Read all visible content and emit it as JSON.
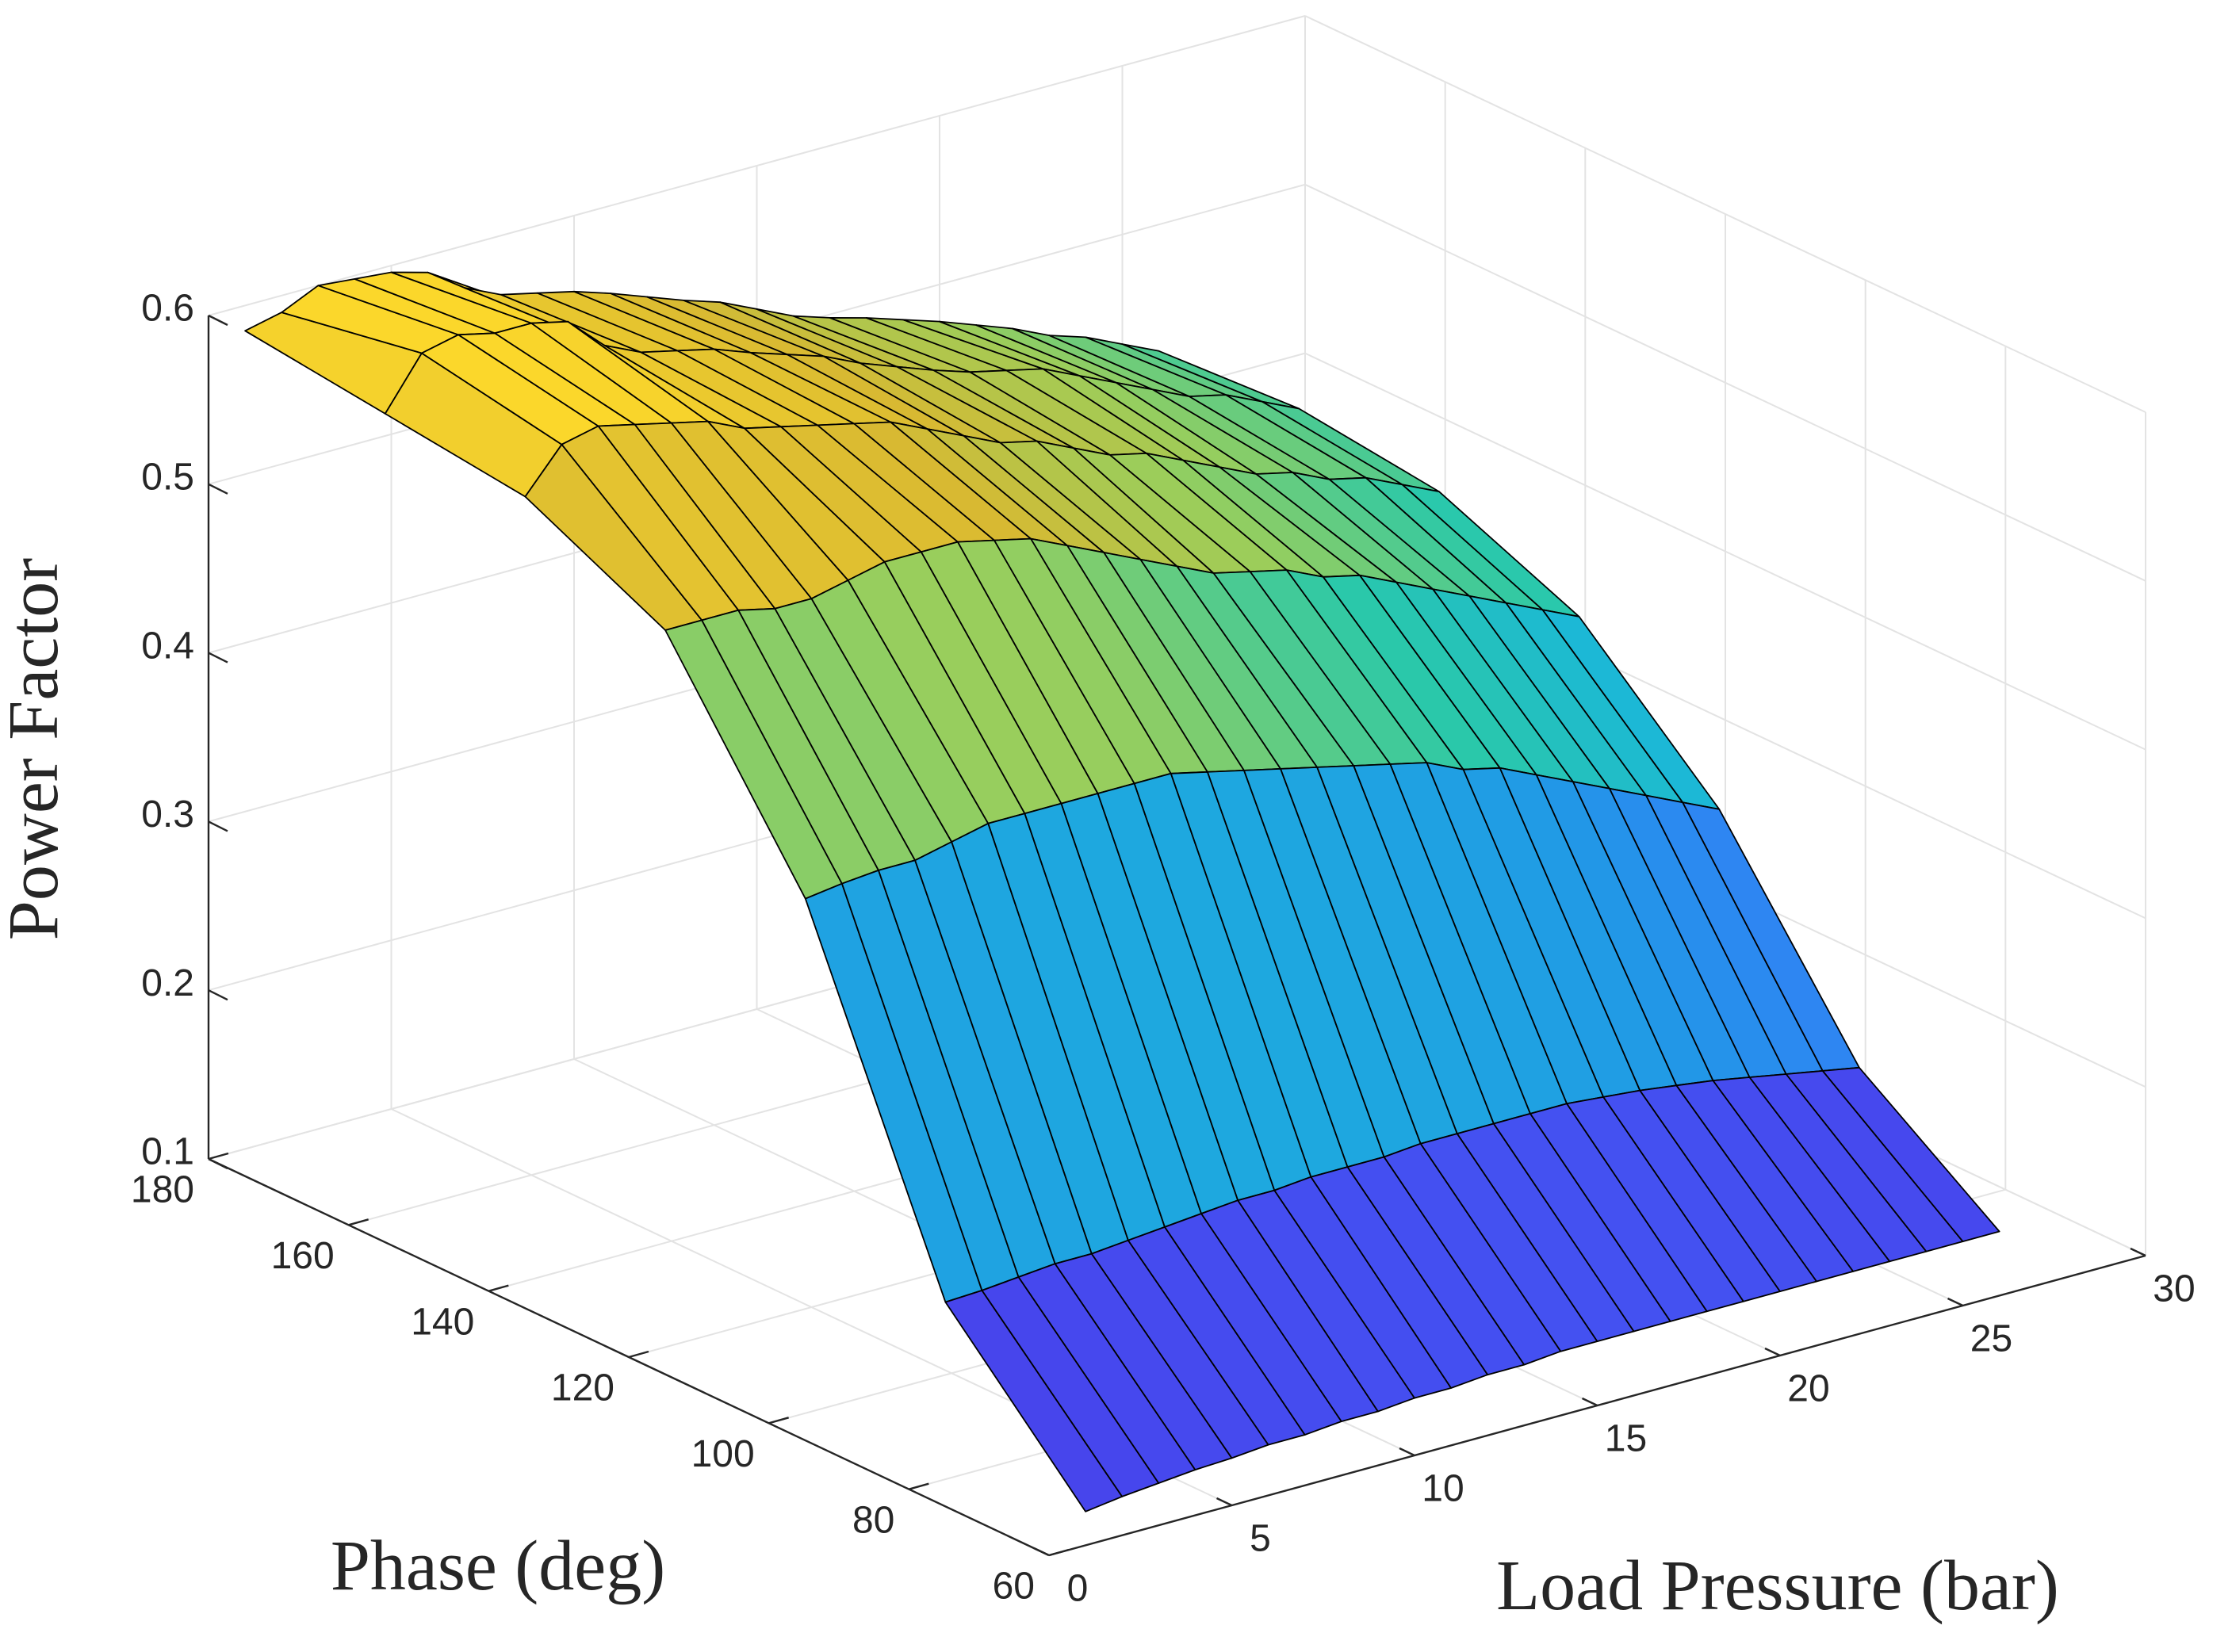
{
  "chart_data": {
    "type": "surface",
    "title": "",
    "xlabel": "Load Pressure (bar)",
    "ylabel": "Phase (deg)",
    "zlabel": "Power Factor",
    "xlim": [
      0,
      30
    ],
    "ylim": [
      60,
      180
    ],
    "zlim": [
      0.1,
      0.6
    ],
    "xticks": [
      0,
      5,
      10,
      15,
      20,
      25,
      30
    ],
    "yticks": [
      60,
      80,
      100,
      120,
      140,
      160,
      180
    ],
    "zticks": [
      0.1,
      0.2,
      0.3,
      0.4,
      0.5,
      0.6
    ],
    "xtick_labels": [
      "0",
      "5",
      "10",
      "15",
      "20",
      "25",
      "30"
    ],
    "ytick_labels": [
      "60",
      "80",
      "100",
      "120",
      "140",
      "160",
      "180"
    ],
    "ztick_labels": [
      "0.1",
      "0.2",
      "0.3",
      "0.4",
      "0.5",
      "0.6"
    ],
    "grid": true,
    "colormap": "parula",
    "colormap_stops": [
      "#3e26a8",
      "#4744ec",
      "#3b72ff",
      "#2199e6",
      "#1bb7d8",
      "#2bc9a8",
      "#99ce5c",
      "#d8b932",
      "#fbd72b"
    ],
    "pressure_bar": [
      1,
      2,
      3,
      4,
      5,
      6,
      7,
      8,
      9,
      10,
      11,
      12,
      13,
      14,
      15,
      16,
      17,
      18,
      19,
      20,
      21,
      22,
      23,
      24,
      25,
      26
    ],
    "phase_deg": [
      60,
      80,
      100,
      120,
      140,
      160,
      180
    ],
    "power_factor": [
      [
        0.12,
        0.205,
        0.405,
        0.525,
        0.565,
        0.575,
        0.585
      ],
      [
        0.123,
        0.206,
        0.408,
        0.525,
        0.59,
        0.605,
        0.59
      ],
      [
        0.125,
        0.208,
        0.41,
        0.525,
        0.595,
        0.61,
        0.6
      ],
      [
        0.127,
        0.21,
        0.41,
        0.52,
        0.59,
        0.605,
        0.598
      ],
      [
        0.128,
        0.21,
        0.415,
        0.52,
        0.585,
        0.605,
        0.596
      ],
      [
        0.13,
        0.212,
        0.42,
        0.525,
        0.58,
        0.6,
        0.59
      ],
      [
        0.13,
        0.214,
        0.42,
        0.53,
        0.57,
        0.58,
        0.575
      ],
      [
        0.132,
        0.216,
        0.42,
        0.53,
        0.565,
        0.57,
        0.565
      ],
      [
        0.132,
        0.218,
        0.42,
        0.53,
        0.56,
        0.565,
        0.56
      ],
      [
        0.134,
        0.218,
        0.42,
        0.525,
        0.555,
        0.56,
        0.555
      ],
      [
        0.134,
        0.22,
        0.42,
        0.52,
        0.55,
        0.552,
        0.548
      ],
      [
        0.136,
        0.22,
        0.415,
        0.51,
        0.54,
        0.545,
        0.54
      ],
      [
        0.136,
        0.22,
        0.41,
        0.5,
        0.53,
        0.538,
        0.532
      ],
      [
        0.138,
        0.222,
        0.405,
        0.49,
        0.52,
        0.528,
        0.525
      ],
      [
        0.138,
        0.222,
        0.4,
        0.48,
        0.515,
        0.52,
        0.515
      ],
      [
        0.138,
        0.222,
        0.395,
        0.47,
        0.505,
        0.512,
        0.505
      ],
      [
        0.138,
        0.222,
        0.39,
        0.465,
        0.495,
        0.505,
        0.498
      ],
      [
        0.138,
        0.222,
        0.385,
        0.46,
        0.49,
        0.5,
        0.492
      ],
      [
        0.138,
        0.22,
        0.375,
        0.45,
        0.48,
        0.495,
        0.485
      ],
      [
        0.138,
        0.218,
        0.37,
        0.445,
        0.47,
        0.485,
        0.478
      ],
      [
        0.138,
        0.215,
        0.36,
        0.435,
        0.46,
        0.475,
        0.47
      ],
      [
        0.138,
        0.212,
        0.35,
        0.425,
        0.455,
        0.465,
        0.462
      ],
      [
        0.138,
        0.208,
        0.34,
        0.415,
        0.445,
        0.455,
        0.452
      ],
      [
        0.138,
        0.204,
        0.33,
        0.405,
        0.44,
        0.45,
        0.445
      ],
      [
        0.138,
        0.2,
        0.32,
        0.395,
        0.43,
        0.44,
        0.435
      ],
      [
        0.138,
        0.196,
        0.31,
        0.385,
        0.42,
        0.43,
        0.425
      ]
    ]
  }
}
